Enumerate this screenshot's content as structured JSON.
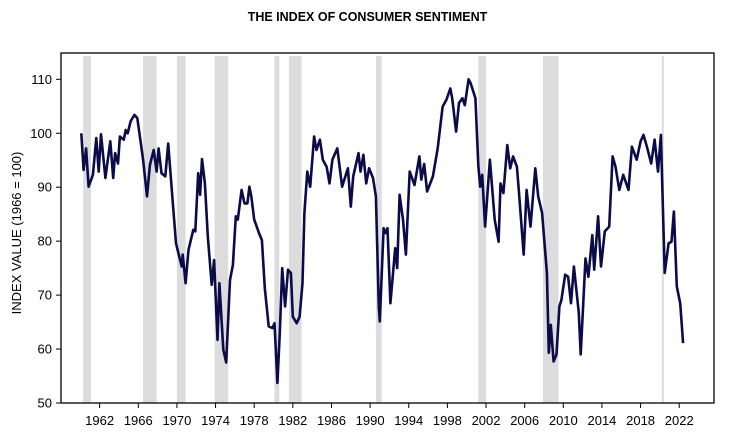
{
  "chart_data": {
    "type": "line",
    "title": "THE INDEX OF CONSUMER SENTIMENT",
    "xlabel": "",
    "ylabel": "INDEX VALUE (1966 = 100)",
    "xlim": [
      1958,
      2025.6
    ],
    "ylim": [
      50,
      110
    ],
    "x_ticks": [
      1962,
      1966,
      1970,
      1974,
      1978,
      1982,
      1986,
      1990,
      1994,
      1998,
      2002,
      2006,
      2010,
      2014,
      2018,
      2022
    ],
    "y_ticks": [
      50,
      60,
      70,
      80,
      90,
      100,
      110
    ],
    "grid": false,
    "line_color": "#0b0b4a",
    "band_color": "#dcdcdc",
    "shaded_periods": [
      [
        1960.3,
        1961.1
      ],
      [
        1966.5,
        1967.9
      ],
      [
        1970.0,
        1970.9
      ],
      [
        1973.9,
        1975.3
      ],
      [
        1980.1,
        1980.6
      ],
      [
        1981.6,
        1982.9
      ],
      [
        1990.6,
        1991.2
      ],
      [
        2001.2,
        2002.0
      ],
      [
        2007.9,
        2009.5
      ],
      [
        2020.2,
        2020.4
      ]
    ],
    "series": [
      {
        "points": [
          [
            1960.1,
            100
          ],
          [
            1960.34,
            93.2
          ],
          [
            1960.6,
            97.2
          ],
          [
            1960.86,
            90.1
          ],
          [
            1961.3,
            92.3
          ],
          [
            1961.65,
            99.1
          ],
          [
            1961.9,
            92.9
          ],
          [
            1962.14,
            99.8
          ],
          [
            1962.6,
            91.7
          ],
          [
            1963.1,
            98.5
          ],
          [
            1963.4,
            91.7
          ],
          [
            1963.6,
            96.3
          ],
          [
            1963.9,
            94.4
          ],
          [
            1964.1,
            99.4
          ],
          [
            1964.5,
            98.8
          ],
          [
            1964.7,
            100.6
          ],
          [
            1964.9,
            100
          ],
          [
            1965.2,
            102.2
          ],
          [
            1965.6,
            103.4
          ],
          [
            1965.9,
            102.8
          ],
          [
            1966.1,
            100.3
          ],
          [
            1966.5,
            95.1
          ],
          [
            1966.9,
            88.3
          ],
          [
            1967.2,
            94.1
          ],
          [
            1967.6,
            96.9
          ],
          [
            1967.9,
            92.9
          ],
          [
            1968.1,
            97.2
          ],
          [
            1968.4,
            92.6
          ],
          [
            1968.8,
            92
          ],
          [
            1969.1,
            98.1
          ],
          [
            1969.6,
            86.4
          ],
          [
            1969.9,
            79.6
          ],
          [
            1970.5,
            75.3
          ],
          [
            1970.6,
            77.5
          ],
          [
            1970.9,
            72.2
          ],
          [
            1971.2,
            78.4
          ],
          [
            1971.7,
            82.1
          ],
          [
            1971.9,
            81.8
          ],
          [
            1972.2,
            92.6
          ],
          [
            1972.4,
            88.6
          ],
          [
            1972.6,
            95.2
          ],
          [
            1972.9,
            90.7
          ],
          [
            1973.2,
            80.9
          ],
          [
            1973.6,
            71.9
          ],
          [
            1973.85,
            76.5
          ],
          [
            1974.2,
            61.7
          ],
          [
            1974.4,
            72.2
          ],
          [
            1974.8,
            59.9
          ],
          [
            1975.1,
            57.5
          ],
          [
            1975.5,
            72.8
          ],
          [
            1975.8,
            75.6
          ],
          [
            1976.1,
            84.6
          ],
          [
            1976.3,
            84
          ],
          [
            1976.7,
            89.5
          ],
          [
            1977,
            87
          ],
          [
            1977.3,
            87
          ],
          [
            1977.5,
            90.1
          ],
          [
            1977.7,
            88.3
          ],
          [
            1978,
            84
          ],
          [
            1978.5,
            81.5
          ],
          [
            1978.8,
            80.2
          ],
          [
            1979.1,
            71.3
          ],
          [
            1979.5,
            64.2
          ],
          [
            1979.9,
            63.9
          ],
          [
            1980.1,
            64.8
          ],
          [
            1980.4,
            53.7
          ],
          [
            1980.65,
            63
          ],
          [
            1980.9,
            75
          ],
          [
            1981.2,
            67.9
          ],
          [
            1981.5,
            74.7
          ],
          [
            1981.8,
            74.1
          ],
          [
            1982,
            66
          ],
          [
            1982.4,
            64.8
          ],
          [
            1982.7,
            66
          ],
          [
            1983,
            72.2
          ],
          [
            1983.2,
            85.2
          ],
          [
            1983.5,
            92.9
          ],
          [
            1983.8,
            90.1
          ],
          [
            1984.2,
            99.4
          ],
          [
            1984.45,
            96.9
          ],
          [
            1984.8,
            98.8
          ],
          [
            1985.1,
            95.1
          ],
          [
            1985.5,
            93.8
          ],
          [
            1985.8,
            90.7
          ],
          [
            1986.1,
            95.1
          ],
          [
            1986.6,
            97.2
          ],
          [
            1987.1,
            90.1
          ],
          [
            1987.7,
            93.5
          ],
          [
            1988,
            86.4
          ],
          [
            1988.25,
            92
          ],
          [
            1988.8,
            96.3
          ],
          [
            1989,
            92.9
          ],
          [
            1989.3,
            96
          ],
          [
            1989.6,
            90.7
          ],
          [
            1989.9,
            93.5
          ],
          [
            1990.3,
            91.7
          ],
          [
            1990.6,
            88.3
          ],
          [
            1990.9,
            67.9
          ],
          [
            1991,
            65.1
          ],
          [
            1991.4,
            82.4
          ],
          [
            1991.6,
            81.5
          ],
          [
            1991.8,
            82.4
          ],
          [
            1992.1,
            68.5
          ],
          [
            1992.6,
            78.7
          ],
          [
            1992.8,
            75
          ],
          [
            1993.05,
            88.6
          ],
          [
            1993.4,
            84
          ],
          [
            1993.7,
            77.5
          ],
          [
            1994.1,
            92.9
          ],
          [
            1994.6,
            90.4
          ],
          [
            1995.1,
            95.7
          ],
          [
            1995.3,
            91.4
          ],
          [
            1995.6,
            94.3
          ],
          [
            1995.9,
            89.2
          ],
          [
            1996.5,
            92
          ],
          [
            1997,
            97.2
          ],
          [
            1997.5,
            104.9
          ],
          [
            1997.9,
            106.2
          ],
          [
            1998.3,
            108.3
          ],
          [
            1998.5,
            106.5
          ],
          [
            1998.9,
            100.3
          ],
          [
            1999.2,
            105.6
          ],
          [
            1999.55,
            106.5
          ],
          [
            1999.8,
            105.2
          ],
          [
            2000.2,
            110
          ],
          [
            2000.4,
            109.3
          ],
          [
            2000.9,
            106.5
          ],
          [
            2001.2,
            94.1
          ],
          [
            2001.4,
            90.1
          ],
          [
            2001.6,
            92.3
          ],
          [
            2001.9,
            82.7
          ],
          [
            2002.4,
            95.1
          ],
          [
            2002.9,
            84
          ],
          [
            2003.3,
            79.9
          ],
          [
            2003.5,
            90.7
          ],
          [
            2003.8,
            88.9
          ],
          [
            2004.2,
            97.8
          ],
          [
            2004.5,
            93.5
          ],
          [
            2004.8,
            95.7
          ],
          [
            2005.2,
            93.8
          ],
          [
            2005.4,
            89.2
          ],
          [
            2005.9,
            77.5
          ],
          [
            2006.2,
            89.5
          ],
          [
            2006.6,
            82.7
          ],
          [
            2007.1,
            93.5
          ],
          [
            2007.4,
            88.3
          ],
          [
            2007.8,
            85.2
          ],
          [
            2008.3,
            74.1
          ],
          [
            2008.5,
            59.3
          ],
          [
            2008.7,
            64.5
          ],
          [
            2009,
            57.7
          ],
          [
            2009.3,
            59
          ],
          [
            2009.6,
            67.9
          ],
          [
            2009.8,
            69.1
          ],
          [
            2010.2,
            73.8
          ],
          [
            2010.5,
            73.4
          ],
          [
            2010.8,
            68.5
          ],
          [
            2011.1,
            75.3
          ],
          [
            2011.6,
            66.7
          ],
          [
            2011.8,
            59
          ],
          [
            2012.3,
            76.8
          ],
          [
            2012.6,
            73.4
          ],
          [
            2013,
            81.1
          ],
          [
            2013.2,
            74.7
          ],
          [
            2013.6,
            84.6
          ],
          [
            2013.9,
            75.3
          ],
          [
            2014.3,
            81.8
          ],
          [
            2014.75,
            82.7
          ],
          [
            2015.1,
            95.7
          ],
          [
            2015.4,
            93.8
          ],
          [
            2015.8,
            89.5
          ],
          [
            2016.2,
            92.3
          ],
          [
            2016.75,
            89.5
          ],
          [
            2017.1,
            97.5
          ],
          [
            2017.6,
            95.1
          ],
          [
            2018,
            98.5
          ],
          [
            2018.3,
            99.7
          ],
          [
            2018.65,
            97.5
          ],
          [
            2019.1,
            94.4
          ],
          [
            2019.45,
            98.8
          ],
          [
            2019.8,
            92.9
          ],
          [
            2020.1,
            99.7
          ],
          [
            2020.5,
            74.1
          ],
          [
            2020.9,
            79.6
          ],
          [
            2021.2,
            79.9
          ],
          [
            2021.45,
            85.5
          ],
          [
            2021.75,
            71.6
          ],
          [
            2022.1,
            68.5
          ],
          [
            2022.4,
            61.1
          ]
        ]
      }
    ]
  }
}
